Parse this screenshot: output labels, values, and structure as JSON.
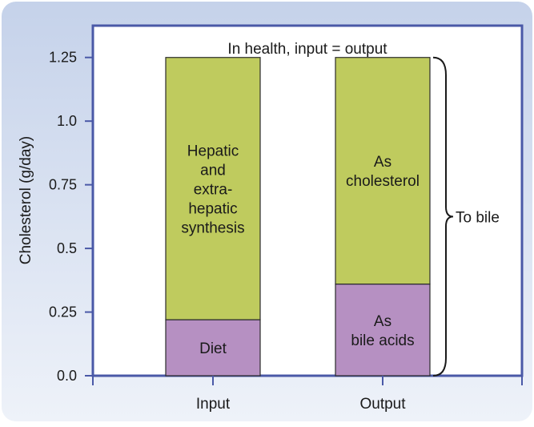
{
  "chart_data": {
    "type": "bar",
    "stacked": true,
    "title": "In health, input = output",
    "ylabel": "Cholesterol (g/day)",
    "xlabel": "",
    "ylim": [
      0,
      1.375
    ],
    "yticks": [
      {
        "value": 0,
        "label": "0.0"
      },
      {
        "value": 0.25,
        "label": "0.25"
      },
      {
        "value": 0.5,
        "label": "0.5"
      },
      {
        "value": 0.75,
        "label": "0.75"
      },
      {
        "value": 1.0,
        "label": "1.0"
      },
      {
        "value": 1.25,
        "label": "1.25"
      }
    ],
    "categories": [
      "Input",
      "Output"
    ],
    "bars": [
      {
        "category": "Input",
        "segments": [
          {
            "label_lines": [
              "Diet"
            ],
            "value": 0.22,
            "color": "#b690c2"
          },
          {
            "label_lines": [
              "Hepatic",
              "and",
              "extra-",
              "hepatic",
              "synthesis"
            ],
            "value": 1.03,
            "color": "#bfcb5e"
          }
        ]
      },
      {
        "category": "Output",
        "segments": [
          {
            "label_lines": [
              "As",
              "bile acids"
            ],
            "value": 0.36,
            "color": "#b690c2"
          },
          {
            "label_lines": [
              "As",
              "cholesterol"
            ],
            "value": 0.89,
            "color": "#bfcb5e"
          }
        ]
      }
    ],
    "annotations": [
      {
        "text": "To bile",
        "type": "brace",
        "category": "Output",
        "from": 0,
        "to": 1.25
      }
    ],
    "grid": false,
    "legend": "none"
  },
  "colors": {
    "frame_gradient_top": "#c5d2ea",
    "frame_gradient_bottom": "#eef2f9",
    "plot_border": "#4a59a7",
    "plot_background": "#ffffff",
    "bar_outline": "#2b2b2b"
  }
}
